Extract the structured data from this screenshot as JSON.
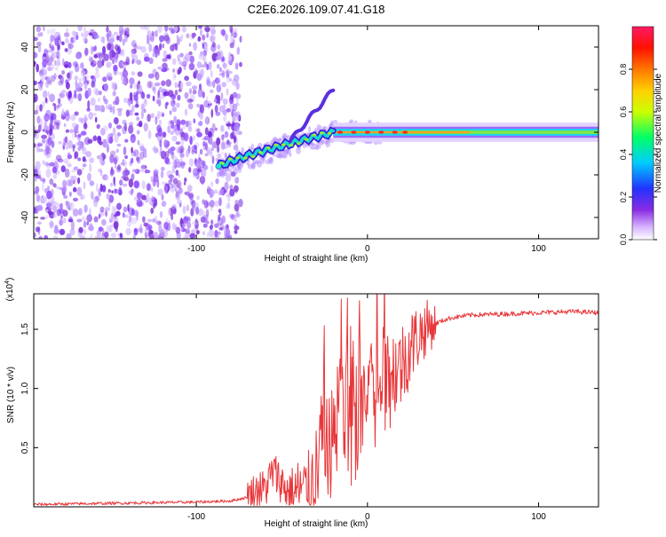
{
  "title": "C2E6.2026.109.07.41.G18",
  "chart_data": [
    {
      "type": "heatmap",
      "xlabel": "Height of straight line (km)",
      "ylabel": "Frequency (Hz)",
      "xlim": [
        -195,
        135
      ],
      "ylim": [
        -50,
        50
      ],
      "x_ticks": [
        -100,
        0,
        100
      ],
      "x_tick_labels": [
        "-100",
        "0",
        "100"
      ],
      "y_ticks": [
        -40,
        -20,
        0,
        20,
        40
      ],
      "y_tick_labels": [
        "-40",
        "-20",
        "0",
        "20",
        "40"
      ],
      "colorbar": {
        "label": "Normalized spectral amplitude",
        "range": [
          0,
          1
        ],
        "ticks": [
          0,
          0.2,
          0.4,
          0.6,
          0.8
        ],
        "tick_labels": [
          "0.0",
          "0.2",
          "0.4",
          "0.6",
          "0.8"
        ]
      },
      "features": {
        "noise_region_x": [
          -195,
          -80
        ],
        "signal_start_x": -87,
        "signal_start_freq": -16,
        "signal_end_freq_near_zero_x": -20,
        "branch_peak_freq": 20,
        "stable_freq": 0,
        "stable_band_x": [
          -20,
          135
        ]
      },
      "grid": false
    },
    {
      "type": "line",
      "xlabel": "Height of straight line (km)",
      "ylabel": "SNR (10 * v/v)",
      "multiplier": "(x10",
      "multiplier_exp": "4",
      "multiplier_close": ")",
      "xlim": [
        -195,
        135
      ],
      "ylim": [
        0,
        1.8
      ],
      "x_ticks": [
        -100,
        0,
        100
      ],
      "x_tick_labels": [
        "-100",
        "0",
        "100"
      ],
      "y_ticks": [
        0.5,
        1.0,
        1.5
      ],
      "y_tick_labels": [
        "0.5",
        "1.0",
        "1.5"
      ],
      "series": [
        {
          "color": "#e8373a",
          "x": [
            -195,
            -150,
            -100,
            -80,
            -70,
            -60,
            -55,
            -50,
            -45,
            -40,
            -35,
            -30,
            -25,
            -20,
            -15,
            -10,
            -5,
            0,
            5,
            10,
            15,
            20,
            25,
            30,
            35,
            40,
            45,
            50,
            60,
            80,
            100,
            120,
            135
          ],
          "values": [
            0.02,
            0.03,
            0.04,
            0.05,
            0.08,
            0.15,
            0.3,
            0.2,
            0.1,
            0.15,
            0.12,
            0.3,
            0.5,
            0.55,
            0.8,
            0.7,
            0.85,
            0.95,
            1.0,
            1.05,
            1.15,
            1.2,
            1.35,
            1.45,
            1.52,
            1.55,
            1.58,
            1.6,
            1.62,
            1.63,
            1.64,
            1.65,
            1.64
          ]
        }
      ],
      "grid": false
    }
  ],
  "colors": {
    "snr_line": "#e8373a",
    "noise_purple": "#7a2fd6"
  }
}
